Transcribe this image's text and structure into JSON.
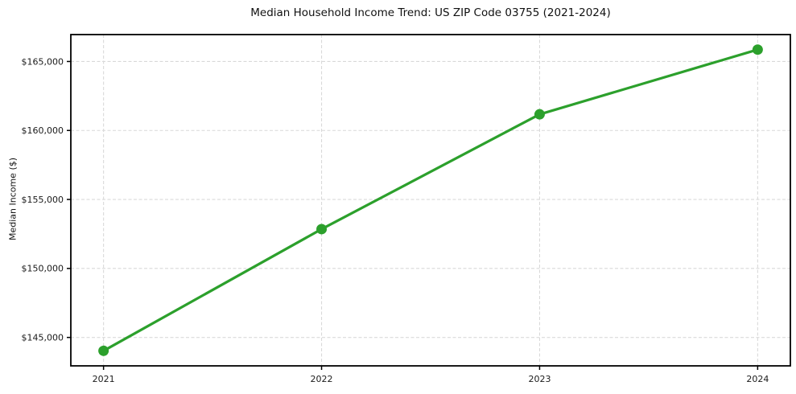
{
  "chart_data": {
    "type": "line",
    "title": "Median Household Income Trend: US ZIP Code 03755 (2021-2024)",
    "xlabel": "",
    "ylabel": "Median Income ($)",
    "x": [
      2021,
      2022,
      2023,
      2024
    ],
    "x_tick_labels": [
      "2021",
      "2022",
      "2023",
      "2024"
    ],
    "values": [
      144030,
      152850,
      161170,
      165860
    ],
    "y_ticks": [
      145000,
      150000,
      155000,
      160000,
      165000
    ],
    "y_tick_labels": [
      "$145,000",
      "$150,000",
      "$155,000",
      "$160,000",
      "$165,000"
    ],
    "xlim": [
      2020.85,
      2024.15
    ],
    "ylim": [
      142940,
      166950
    ],
    "grid": true,
    "grid_style": "dashed",
    "legend": "none",
    "colors": {
      "line": "#2ca02c",
      "marker": "#2ca02c",
      "grid": "#d9d9d9",
      "spine": "#000000",
      "tick_text": "#1a1a1a",
      "background": "#ffffff"
    }
  }
}
